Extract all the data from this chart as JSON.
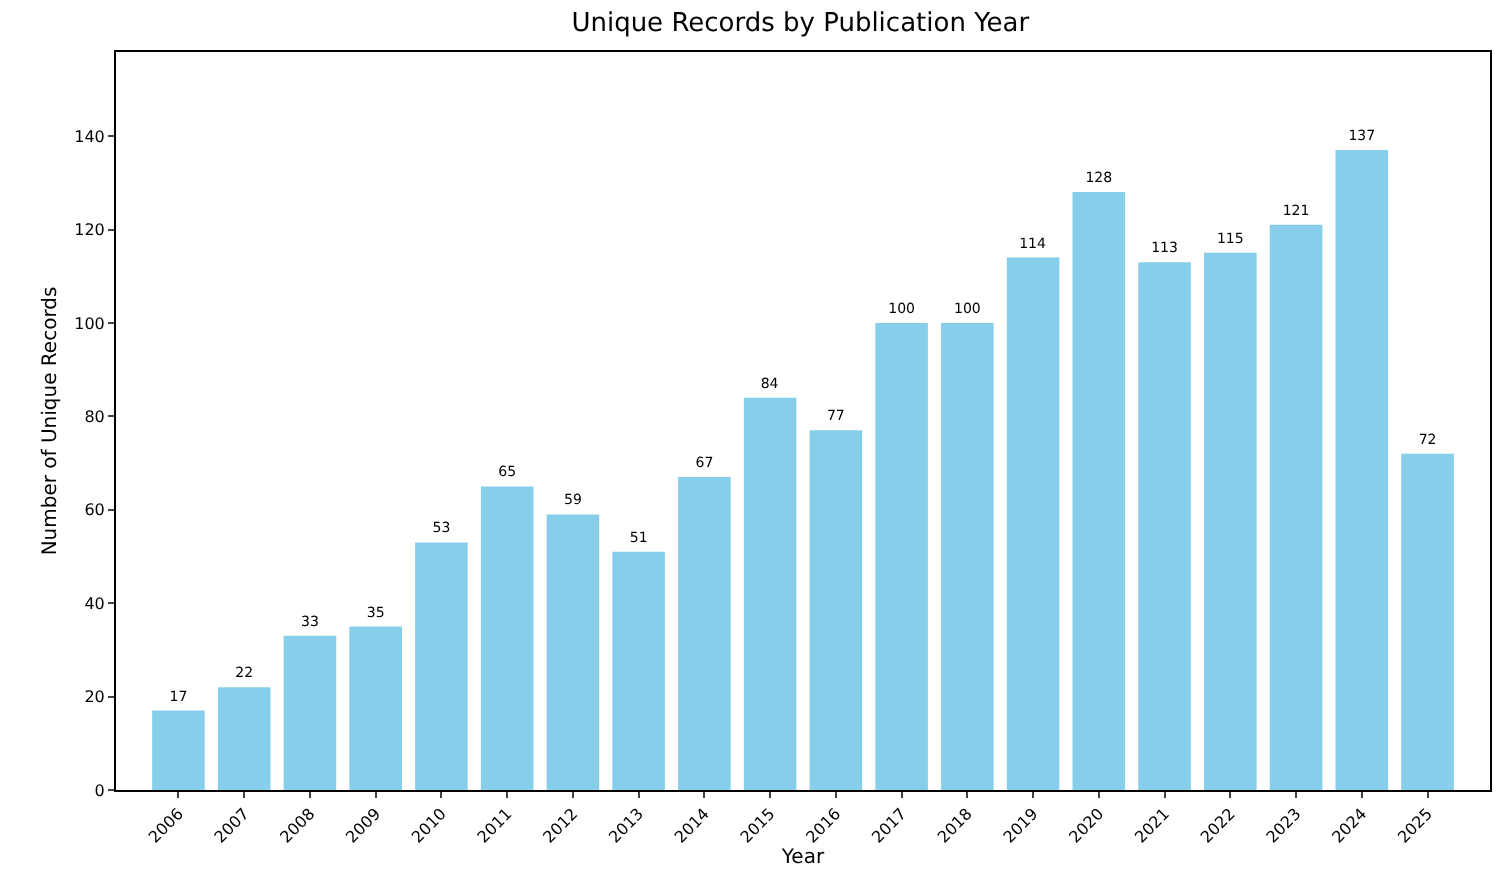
{
  "chart_data": {
    "type": "bar",
    "title": "Unique Records by Publication Year",
    "xlabel": "Year",
    "ylabel": "Number of Unique Records",
    "categories": [
      "2006",
      "2007",
      "2008",
      "2009",
      "2010",
      "2011",
      "2012",
      "2013",
      "2014",
      "2015",
      "2016",
      "2017",
      "2018",
      "2019",
      "2020",
      "2021",
      "2022",
      "2023",
      "2024",
      "2025"
    ],
    "values": [
      17,
      22,
      33,
      35,
      53,
      65,
      59,
      51,
      67,
      84,
      77,
      100,
      100,
      114,
      128,
      113,
      115,
      121,
      137,
      72
    ],
    "color": "#87ceeb",
    "ylim": [
      0,
      158
    ],
    "yticks": [
      0,
      20,
      40,
      60,
      80,
      100,
      120,
      140
    ],
    "grid": false,
    "data_labels": true
  }
}
